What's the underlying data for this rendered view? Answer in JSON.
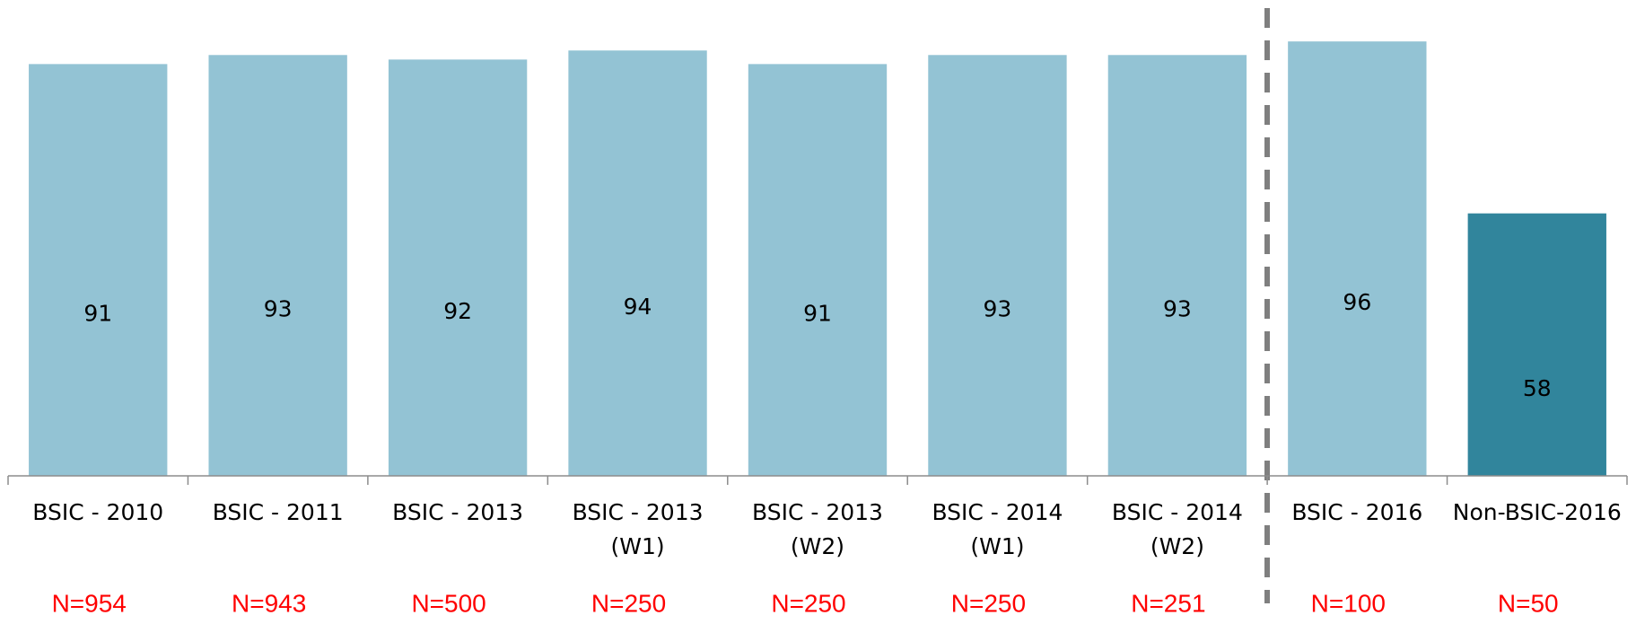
{
  "chart_data": {
    "type": "bar",
    "categories": [
      [
        "BSIC - 2010"
      ],
      [
        "BSIC - 2011"
      ],
      [
        "BSIC - 2013"
      ],
      [
        "BSIC - 2013",
        "(W1)"
      ],
      [
        "BSIC - 2013",
        "(W2)"
      ],
      [
        "BSIC - 2014",
        "(W1)"
      ],
      [
        "BSIC - 2014",
        "(W2)"
      ],
      [
        "BSIC - 2016"
      ],
      [
        "Non-BSIC-2016"
      ]
    ],
    "values": [
      91,
      93,
      92,
      94,
      91,
      93,
      93,
      96,
      58
    ],
    "colors": [
      "#93c3d4",
      "#93c3d4",
      "#93c3d4",
      "#93c3d4",
      "#93c3d4",
      "#93c3d4",
      "#93c3d4",
      "#93c3d4",
      "#31859c"
    ],
    "sample_sizes": [
      "N=954",
      "N=943",
      "N=500",
      "N=250",
      "N=250",
      "N=250",
      "N=251",
      "N=100",
      "N=50"
    ],
    "ylim": [
      0,
      100
    ]
  }
}
